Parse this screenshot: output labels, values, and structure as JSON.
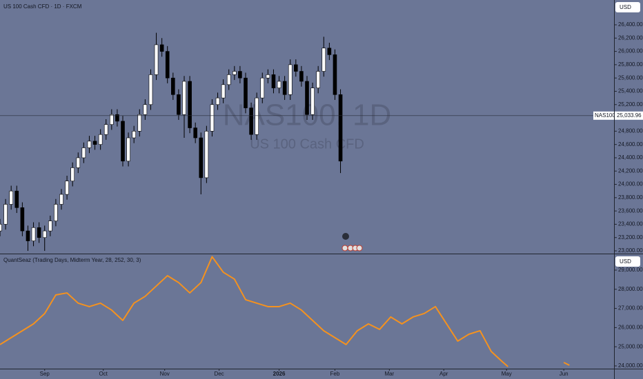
{
  "header": {
    "symbol_title": "US 100 Cash CFD · 1D · FXCM",
    "currency": "USD",
    "watermark_symbol": "NAS100, 1D",
    "watermark_name": "US 100 Cash CFD",
    "price_tag": "NAS100"
  },
  "indicator": {
    "title": "QuantSeaz (Trading Days, Midterm Year, 28, 252, 30, 3)",
    "currency": "USD"
  },
  "chart_data": [
    {
      "type": "candlestick",
      "x": [
        0,
        2,
        4,
        6,
        8,
        10,
        12,
        14,
        16,
        18,
        20,
        22,
        24,
        26,
        28,
        30,
        32,
        34,
        36,
        38,
        40,
        42,
        44,
        46,
        48,
        50,
        52,
        54,
        56,
        58,
        60,
        62,
        64,
        66,
        68,
        70,
        72,
        74,
        76,
        78,
        80,
        82,
        84,
        86,
        88,
        90,
        92,
        94,
        96,
        98,
        100,
        102,
        104,
        106,
        108,
        110,
        112,
        114,
        116,
        118,
        120,
        122
      ],
      "open": [
        23300,
        23400,
        23700,
        23900,
        23650,
        23300,
        23150,
        23350,
        23200,
        23300,
        23450,
        23700,
        23850,
        24050,
        24250,
        24400,
        24550,
        24650,
        24600,
        24750,
        24900,
        25050,
        24950,
        24350,
        24700,
        24800,
        25050,
        25200,
        25650,
        26100,
        26000,
        25600,
        25350,
        25050,
        25550,
        24850,
        24700,
        24100,
        24800,
        25200,
        25300,
        25500,
        25650,
        25700,
        25600,
        25150,
        24750,
        25300,
        25600,
        25650,
        25450,
        25550,
        25350,
        25800,
        25700,
        25550,
        25050,
        25450,
        25700,
        26050,
        25950,
        25350
      ],
      "high": [
        23480,
        23780,
        23980,
        23980,
        23730,
        23380,
        23430,
        23430,
        23380,
        23530,
        23780,
        23930,
        24130,
        24330,
        24480,
        24630,
        24730,
        24730,
        24830,
        24980,
        25130,
        25130,
        25030,
        24780,
        24880,
        25130,
        25280,
        25730,
        26280,
        26200,
        26080,
        25680,
        25430,
        25630,
        25630,
        24930,
        24780,
        24880,
        25280,
        25380,
        25580,
        25730,
        25780,
        25780,
        25680,
        25230,
        25380,
        25680,
        25730,
        25730,
        25630,
        25630,
        25880,
        25880,
        25780,
        25630,
        25530,
        25780,
        26220,
        26130,
        26030,
        25430
      ],
      "low": [
        23220,
        23320,
        23620,
        23570,
        23220,
        23000,
        23070,
        23120,
        23000,
        23220,
        23370,
        23620,
        23770,
        23970,
        24170,
        24320,
        24470,
        24520,
        24520,
        24670,
        24820,
        24870,
        24270,
        24270,
        24620,
        24720,
        24970,
        25120,
        25570,
        25920,
        25520,
        25270,
        24970,
        24700,
        24770,
        24620,
        23850,
        24020,
        24720,
        25120,
        25220,
        25420,
        25570,
        25520,
        25070,
        24670,
        24670,
        25220,
        25520,
        25370,
        25370,
        25270,
        25270,
        25620,
        25470,
        24970,
        24970,
        25370,
        25620,
        25870,
        25270,
        24170
      ],
      "close": [
        23400,
        23700,
        23900,
        23650,
        23300,
        23150,
        23350,
        23200,
        23300,
        23450,
        23700,
        23850,
        24050,
        24250,
        24400,
        24550,
        24650,
        24600,
        24750,
        24900,
        25050,
        24950,
        24350,
        24700,
        24800,
        25050,
        25200,
        25650,
        26100,
        26000,
        25600,
        25350,
        25050,
        25550,
        24850,
        24700,
        24100,
        24800,
        25200,
        25300,
        25500,
        25650,
        25700,
        25600,
        25150,
        24750,
        25300,
        25600,
        25650,
        25450,
        25550,
        25350,
        25800,
        25700,
        25550,
        25050,
        25450,
        25700,
        26050,
        25950,
        25350,
        24350
      ],
      "up_color": "#ffffff",
      "down_color": "#000000",
      "current_price": {
        "value": 25033.96,
        "label": "25,033.96"
      },
      "xlim": [
        0,
        220
      ],
      "ylim": [
        22959,
        26773
      ],
      "yticks": [
        {
          "value": 23000,
          "label": "23,000.00"
        },
        {
          "value": 23200,
          "label": "23,200.00"
        },
        {
          "value": 23400,
          "label": "23,400.00"
        },
        {
          "value": 23600,
          "label": "23,600.00"
        },
        {
          "value": 23800,
          "label": "23,800.00"
        },
        {
          "value": 24000,
          "label": "24,000.00"
        },
        {
          "value": 24200,
          "label": "24,200.00"
        },
        {
          "value": 24400,
          "label": "24,400.00"
        },
        {
          "value": 24600,
          "label": "24,600.00"
        },
        {
          "value": 24800,
          "label": "24,800.00"
        },
        {
          "value": 25000,
          "label": "25,000.00"
        },
        {
          "value": 25200,
          "label": "25,200.00"
        },
        {
          "value": 25400,
          "label": "25,400.00"
        },
        {
          "value": 25600,
          "label": "25,600.00"
        },
        {
          "value": 25800,
          "label": "25,800.00"
        },
        {
          "value": 26000,
          "label": "26,000.00"
        },
        {
          "value": 26200,
          "label": "26,200.00"
        },
        {
          "value": 26400,
          "label": "26,400.00"
        }
      ]
    },
    {
      "type": "line",
      "x": [
        0,
        4,
        8,
        12,
        16,
        20,
        24,
        28,
        32,
        36,
        40,
        44,
        48,
        52,
        56,
        60,
        64,
        68,
        72,
        76,
        80,
        84,
        88,
        92,
        96,
        100,
        104,
        108,
        112,
        116,
        120,
        124,
        128,
        132,
        136,
        140,
        144,
        148,
        152,
        156,
        160,
        164,
        168,
        172,
        176,
        180,
        182,
        190,
        202,
        204
      ],
      "series": [
        {
          "color": "#f5921e",
          "values": [
            25115,
            25475,
            25835,
            26195,
            26735,
            27705,
            27810,
            27275,
            27095,
            27275,
            26915,
            26375,
            27275,
            27630,
            28170,
            28710,
            28350,
            27810,
            28350,
            29700,
            28890,
            28530,
            27455,
            27275,
            27095,
            27095,
            27275,
            26915,
            26375,
            25835,
            25475,
            25115,
            25835,
            26195,
            25905,
            26555,
            26195,
            26555,
            26735,
            27095,
            26195,
            25295,
            25655,
            25835,
            24755,
            24215,
            23965,
            null,
            24180,
            24035
          ]
        }
      ],
      "xlim": [
        0,
        220
      ],
      "ylim": [
        23856,
        29827
      ],
      "yticks": [
        {
          "value": 24000,
          "label": "24,000.00"
        },
        {
          "value": 25000,
          "label": "25,000.00"
        },
        {
          "value": 26000,
          "label": "26,000.00"
        },
        {
          "value": 27000,
          "label": "27,000.00"
        },
        {
          "value": 28000,
          "label": "28,000.00"
        },
        {
          "value": 29000,
          "label": "29,000.00"
        }
      ],
      "xticks": [
        {
          "value": 16,
          "label": "Sep"
        },
        {
          "value": 37,
          "label": "Oct"
        },
        {
          "value": 59,
          "label": "Nov"
        },
        {
          "value": 78.5,
          "label": "Dec"
        },
        {
          "value": 100,
          "label": "2026"
        },
        {
          "value": 120,
          "label": "Feb"
        },
        {
          "value": 139.5,
          "label": "Mar"
        },
        {
          "value": 159,
          "label": "Apr"
        },
        {
          "value": 181.5,
          "label": "May"
        },
        {
          "value": 202,
          "label": "Jun"
        }
      ]
    }
  ]
}
